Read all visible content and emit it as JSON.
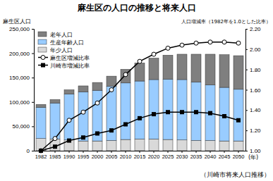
{
  "chart_data": {
    "type": "bar",
    "title": "麻生区の人口の推移と将来人口",
    "y_label": "麻生区人口",
    "y2_label": "人口増減率（1982年を1.0とした比率）",
    "x_label": "(年)",
    "footnote": "（川崎市将来人口推移）",
    "stacked": true,
    "grid": false,
    "legend": "upper left",
    "categories": [
      "1982",
      "1985",
      "1990",
      "1995",
      "2000",
      "2005",
      "2010",
      "2015",
      "2020",
      "2025",
      "2030",
      "2035",
      "2040",
      "2045",
      "2050"
    ],
    "ylim": [
      0,
      250000
    ],
    "yticks": [
      0,
      {
        "value": 50000,
        "label": "50,000"
      },
      {
        "value": 100000,
        "label": "100,000"
      },
      {
        "value": 150000,
        "label": "150,000"
      },
      {
        "value": 200000,
        "label": "200,000"
      },
      {
        "value": 250000,
        "label": "250,000"
      }
    ],
    "y2lim": [
      1,
      2.2
    ],
    "y2ticks": [
      {
        "value": 1,
        "label": "1.00"
      },
      {
        "value": 1.2,
        "label": "1.20"
      },
      {
        "value": 1.4,
        "label": "1.40"
      },
      {
        "value": 1.6,
        "label": "1.60"
      },
      {
        "value": 1.8,
        "label": "1.80"
      },
      {
        "value": 2,
        "label": "2.00"
      },
      {
        "value": 2.2,
        "label": "2.20"
      }
    ],
    "series": [
      {
        "name": "老年人口",
        "type": "bar",
        "color": "#7f7f7f",
        "values": [
          6000,
          7000,
          9000,
          12000,
          16000,
          21000,
          28000,
          37000,
          44000,
          49000,
          52000,
          57000,
          63000,
          67000,
          69000
        ]
      },
      {
        "name": "生産年齢人口",
        "type": "bar",
        "color": "#99ccff",
        "values": [
          64000,
          74000,
          94000,
          101000,
          104000,
          111000,
          116000,
          119000,
          122000,
          124000,
          124000,
          120000,
          114000,
          110000,
          106000
        ]
      },
      {
        "name": "年少人口",
        "type": "bar",
        "color": "#d9d9d9",
        "values": [
          25000,
          24000,
          22000,
          20000,
          20000,
          21000,
          23000,
          24000,
          24000,
          23000,
          22000,
          21000,
          21000,
          20000,
          20000
        ]
      },
      {
        "name": "麻生区増減比率",
        "type": "line",
        "axis": "y2",
        "color": "#000000",
        "marker": "circle",
        "line_style": "solid",
        "values": [
          1.0,
          1.12,
          1.3,
          1.38,
          1.47,
          1.6,
          1.75,
          1.88,
          1.95,
          2.01,
          2.04,
          2.06,
          2.07,
          2.07,
          2.06
        ]
      },
      {
        "name": "川崎市増減比率",
        "type": "line",
        "axis": "y2",
        "color": "#000000",
        "marker": "square",
        "line_style": "solid",
        "values": [
          1.0,
          1.04,
          1.1,
          1.13,
          1.17,
          1.2,
          1.26,
          1.32,
          1.36,
          1.38,
          1.38,
          1.38,
          1.37,
          1.34,
          1.3
        ]
      }
    ]
  }
}
